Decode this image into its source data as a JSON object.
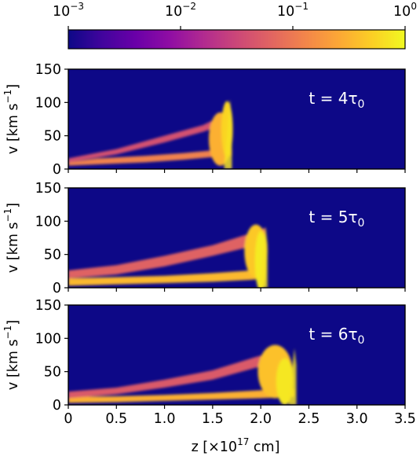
{
  "figure": {
    "colorbar": {
      "scale": "log",
      "range": [
        0.001,
        1
      ],
      "ticks": [
        {
          "base": "10",
          "exp": "−3"
        },
        {
          "base": "10",
          "exp": "−2"
        },
        {
          "base": "10",
          "exp": "−1"
        },
        {
          "base": "10",
          "exp": "0"
        }
      ],
      "colormap": [
        "#0d0887",
        "#41049d",
        "#6a00a8",
        "#8f0da4",
        "#b12a90",
        "#cc4778",
        "#e16462",
        "#f2844b",
        "#fca636",
        "#fcce25",
        "#f0f921"
      ],
      "background_color": "#0d0887"
    },
    "ylabel": {
      "base": "v [km s",
      "exp": "−1",
      "close": "]"
    },
    "xlabel": {
      "pre": "z [×10",
      "exp": "17",
      "post": " cm]"
    }
  },
  "chart_data": [
    {
      "type": "heatmap",
      "annotation": {
        "pre": "t = 4τ",
        "sub": "0"
      },
      "xlim": [
        0,
        3.5
      ],
      "ylim": [
        0,
        150
      ],
      "yticks": [
        "0",
        "50",
        "100",
        "150"
      ],
      "xticks": [],
      "front_z": 1.7,
      "max_v": 105,
      "features": [
        {
          "kind": "band",
          "points": [
            [
              0,
              5,
              10
            ],
            [
              0.3,
              7,
              16
            ],
            [
              0.8,
              10,
              20
            ],
            [
              1.2,
              14,
              24
            ],
            [
              1.5,
              18,
              28
            ],
            [
              1.7,
              20,
              30
            ]
          ],
          "level": 0.12
        },
        {
          "kind": "band",
          "points": [
            [
              0,
              10,
              16
            ],
            [
              0.5,
              22,
              30
            ],
            [
              1.0,
              40,
              50
            ],
            [
              1.4,
              56,
              66
            ],
            [
              1.6,
              66,
              80
            ]
          ],
          "level": 0.04
        },
        {
          "kind": "blob",
          "z": 1.58,
          "v": 45,
          "dz": 0.12,
          "dv": 40,
          "level": 0.3
        },
        {
          "kind": "blob",
          "z": 1.65,
          "v": 60,
          "dz": 0.06,
          "dv": 42,
          "level": 0.55
        }
      ]
    },
    {
      "type": "heatmap",
      "annotation": {
        "pre": "t = 5τ",
        "sub": "0"
      },
      "xlim": [
        0,
        3.5
      ],
      "ylim": [
        0,
        150
      ],
      "yticks": [
        "0",
        "50",
        "100",
        "150"
      ],
      "xticks": [],
      "front_z": 2.07,
      "max_v": 92,
      "features": [
        {
          "kind": "band",
          "points": [
            [
              0,
              3,
              14
            ],
            [
              0.5,
              5,
              16
            ],
            [
              1.0,
              7,
              18
            ],
            [
              1.5,
              9,
              22
            ],
            [
              1.9,
              12,
              26
            ],
            [
              2.05,
              14,
              28
            ]
          ],
          "level": 0.35
        },
        {
          "kind": "band",
          "points": [
            [
              0,
              14,
              26
            ],
            [
              0.5,
              20,
              34
            ],
            [
              1.0,
              32,
              48
            ],
            [
              1.5,
              48,
              64
            ],
            [
              1.9,
              62,
              82
            ],
            [
              2.05,
              70,
              90
            ]
          ],
          "level": 0.06
        },
        {
          "kind": "blob",
          "z": 1.95,
          "v": 55,
          "dz": 0.12,
          "dv": 40,
          "level": 0.45
        },
        {
          "kind": "blob",
          "z": 2.0,
          "v": 40,
          "dz": 0.06,
          "dv": 45,
          "level": 0.8
        }
      ]
    },
    {
      "type": "heatmap",
      "annotation": {
        "pre": "t = 6τ",
        "sub": "0"
      },
      "xlim": [
        0,
        3.5
      ],
      "ylim": [
        0,
        150
      ],
      "yticks": [
        "0",
        "50",
        "100",
        "150"
      ],
      "xticks": [
        "0",
        "0.5",
        "1.0",
        "1.5",
        "2.0",
        "2.5",
        "3.0",
        "3.5"
      ],
      "front_z": 2.37,
      "max_v": 85,
      "features": [
        {
          "kind": "band",
          "points": [
            [
              0,
              3,
              12
            ],
            [
              0.5,
              4,
              13
            ],
            [
              1.0,
              6,
              15
            ],
            [
              1.5,
              8,
              18
            ],
            [
              2.0,
              10,
              22
            ],
            [
              2.35,
              12,
              24
            ]
          ],
          "level": 0.3
        },
        {
          "kind": "band",
          "points": [
            [
              0,
              10,
              20
            ],
            [
              0.5,
              16,
              26
            ],
            [
              1.0,
              26,
              38
            ],
            [
              1.5,
              38,
              52
            ],
            [
              1.95,
              56,
              72
            ],
            [
              2.2,
              64,
              82
            ]
          ],
          "level": 0.05
        },
        {
          "kind": "blob",
          "z": 2.15,
          "v": 50,
          "dz": 0.18,
          "dv": 40,
          "level": 0.4
        },
        {
          "kind": "blob",
          "z": 2.25,
          "v": 35,
          "dz": 0.09,
          "dv": 35,
          "level": 0.75
        }
      ]
    }
  ]
}
